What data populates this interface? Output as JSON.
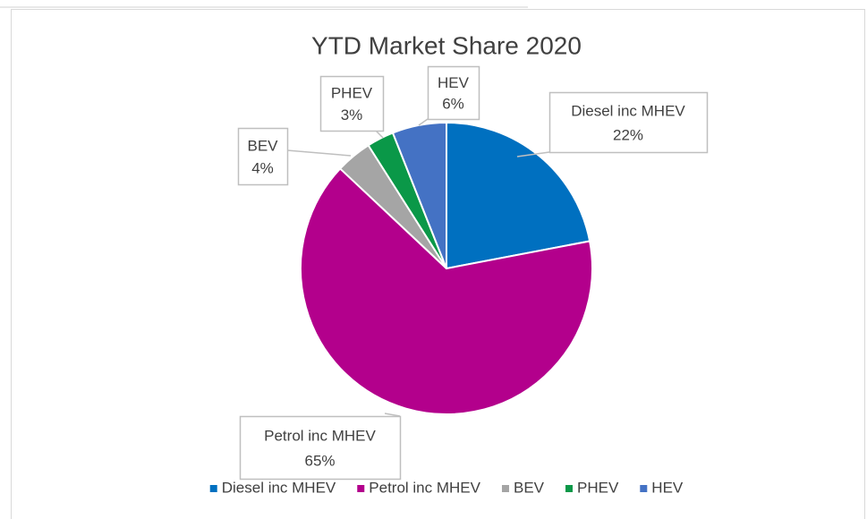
{
  "chart_data": {
    "type": "pie",
    "title": "YTD Market Share 2020",
    "categories": [
      "Diesel inc MHEV",
      "Petrol inc MHEV",
      "BEV",
      "PHEV",
      "HEV"
    ],
    "values": [
      22,
      65,
      4,
      3,
      6
    ],
    "value_labels": [
      "22%",
      "65%",
      "4%",
      "3%",
      "6%"
    ],
    "colors": [
      "#0070c0",
      "#b3008c",
      "#a5a5a5",
      "#0a9848",
      "#4472c4"
    ],
    "legend": "bottom"
  }
}
